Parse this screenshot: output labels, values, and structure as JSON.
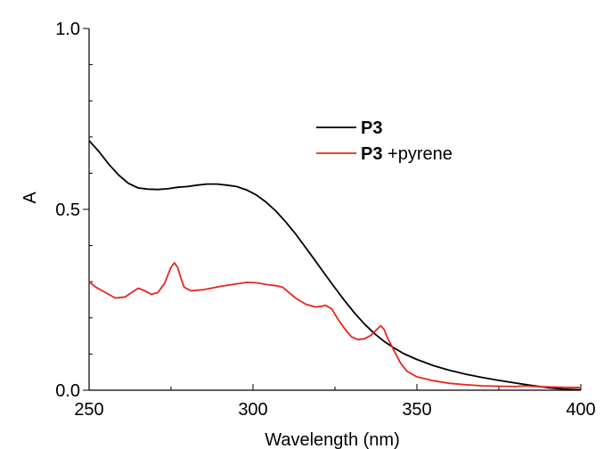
{
  "chart_data": {
    "type": "line",
    "title": "",
    "xlabel": "Wavelength (nm)",
    "ylabel": "A",
    "xlim": [
      250,
      400
    ],
    "ylim": [
      0.0,
      1.0
    ],
    "x_ticks": [
      250,
      300,
      350,
      400
    ],
    "x_tick_labels": [
      "250",
      "300",
      "350",
      "400"
    ],
    "y_ticks": [
      0.0,
      0.5,
      1.0
    ],
    "y_tick_labels": [
      "0.0",
      "0.5",
      "1.0"
    ],
    "grid": false,
    "legend_position": "top-center",
    "series": [
      {
        "name": "P3",
        "legend_bold": "P3",
        "legend_rest": "",
        "color": "#000000",
        "points": [
          [
            250,
            0.69
          ],
          [
            253,
            0.66
          ],
          [
            256,
            0.625
          ],
          [
            259,
            0.595
          ],
          [
            262,
            0.572
          ],
          [
            265,
            0.559
          ],
          [
            268,
            0.556
          ],
          [
            271,
            0.555
          ],
          [
            274,
            0.557
          ],
          [
            277,
            0.561
          ],
          [
            280,
            0.563
          ],
          [
            283,
            0.567
          ],
          [
            286,
            0.57
          ],
          [
            289,
            0.57
          ],
          [
            292,
            0.567
          ],
          [
            295,
            0.563
          ],
          [
            298,
            0.554
          ],
          [
            301,
            0.54
          ],
          [
            304,
            0.52
          ],
          [
            307,
            0.495
          ],
          [
            310,
            0.465
          ],
          [
            313,
            0.432
          ],
          [
            316,
            0.395
          ],
          [
            319,
            0.358
          ],
          [
            322,
            0.32
          ],
          [
            325,
            0.283
          ],
          [
            328,
            0.247
          ],
          [
            331,
            0.213
          ],
          [
            334,
            0.183
          ],
          [
            337,
            0.157
          ],
          [
            340,
            0.135
          ],
          [
            343,
            0.117
          ],
          [
            346,
            0.101
          ],
          [
            350,
            0.085
          ],
          [
            355,
            0.068
          ],
          [
            360,
            0.055
          ],
          [
            365,
            0.044
          ],
          [
            370,
            0.035
          ],
          [
            375,
            0.027
          ],
          [
            380,
            0.02
          ],
          [
            385,
            0.013
          ],
          [
            390,
            0.007
          ],
          [
            395,
            0.003
          ],
          [
            400,
            0.001
          ]
        ]
      },
      {
        "name": "P3 +pyrene",
        "legend_bold": "P3",
        "legend_rest": " +pyrene",
        "color": "#e8251c",
        "points": [
          [
            250,
            0.3
          ],
          [
            252,
            0.285
          ],
          [
            255,
            0.27
          ],
          [
            258,
            0.255
          ],
          [
            261,
            0.258
          ],
          [
            263,
            0.27
          ],
          [
            265,
            0.282
          ],
          [
            267,
            0.275
          ],
          [
            269,
            0.265
          ],
          [
            271,
            0.27
          ],
          [
            273,
            0.295
          ],
          [
            275,
            0.34
          ],
          [
            276,
            0.352
          ],
          [
            277,
            0.34
          ],
          [
            278,
            0.31
          ],
          [
            279,
            0.285
          ],
          [
            281,
            0.275
          ],
          [
            285,
            0.278
          ],
          [
            290,
            0.287
          ],
          [
            295,
            0.294
          ],
          [
            298,
            0.298
          ],
          [
            301,
            0.297
          ],
          [
            304,
            0.292
          ],
          [
            307,
            0.289
          ],
          [
            309,
            0.285
          ],
          [
            311,
            0.27
          ],
          [
            313,
            0.255
          ],
          [
            316,
            0.238
          ],
          [
            319,
            0.23
          ],
          [
            321,
            0.232
          ],
          [
            322,
            0.235
          ],
          [
            324,
            0.225
          ],
          [
            326,
            0.195
          ],
          [
            328,
            0.17
          ],
          [
            330,
            0.148
          ],
          [
            332,
            0.14
          ],
          [
            334,
            0.142
          ],
          [
            336,
            0.152
          ],
          [
            338,
            0.17
          ],
          [
            339,
            0.178
          ],
          [
            340,
            0.168
          ],
          [
            341,
            0.145
          ],
          [
            343,
            0.11
          ],
          [
            345,
            0.075
          ],
          [
            347,
            0.052
          ],
          [
            350,
            0.037
          ],
          [
            355,
            0.026
          ],
          [
            360,
            0.019
          ],
          [
            365,
            0.015
          ],
          [
            370,
            0.012
          ],
          [
            375,
            0.011
          ],
          [
            380,
            0.01
          ],
          [
            383,
            0.012
          ],
          [
            386,
            0.01
          ],
          [
            390,
            0.009
          ],
          [
            395,
            0.008
          ],
          [
            400,
            0.007
          ]
        ]
      }
    ]
  }
}
